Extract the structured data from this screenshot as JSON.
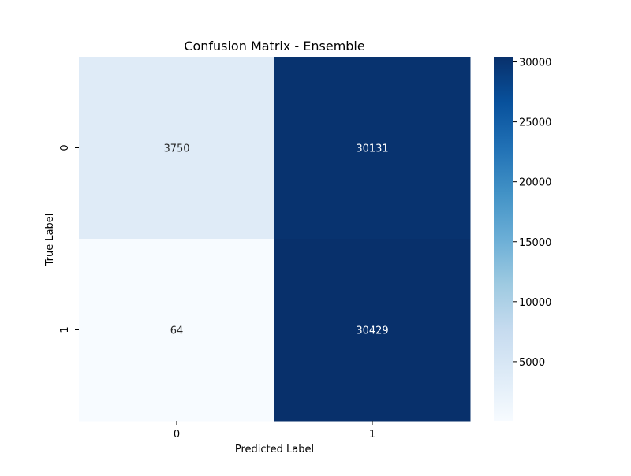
{
  "chart_data": {
    "type": "heatmap",
    "title": "Confusion Matrix - Ensemble",
    "xlabel": "Predicted Label",
    "ylabel": "True Label",
    "x_categories": [
      "0",
      "1"
    ],
    "y_categories": [
      "0",
      "1"
    ],
    "values": [
      [
        3750,
        30131
      ],
      [
        64,
        30429
      ]
    ],
    "colormap": "Blues",
    "color_range": [
      64,
      30429
    ],
    "colorbar_ticks": [
      5000,
      10000,
      15000,
      20000,
      25000,
      30000
    ],
    "colorbar_tick_labels": [
      "5000",
      "10000",
      "15000",
      "20000",
      "25000",
      "30000"
    ],
    "light_text_color": "#ffffff",
    "dark_text_color": "#262626"
  }
}
